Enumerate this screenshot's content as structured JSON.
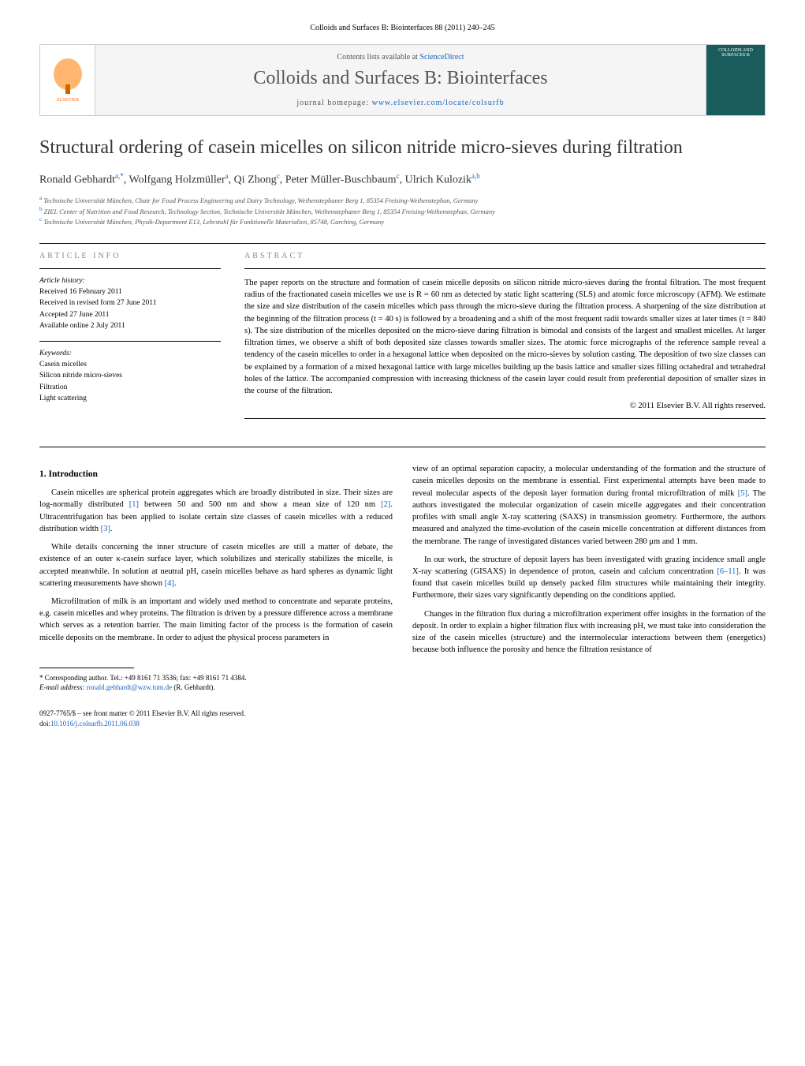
{
  "page_header": "Colloids and Surfaces B: Biointerfaces 88 (2011) 240–245",
  "masthead": {
    "contents_prefix": "Contents lists available at ",
    "contents_link": "ScienceDirect",
    "journal_name": "Colloids and Surfaces B: Biointerfaces",
    "homepage_prefix": "journal homepage: ",
    "homepage_url": "www.elsevier.com/locate/colsurfb",
    "cover_title": "COLLOIDS AND SURFACES B"
  },
  "title": "Structural ordering of casein micelles on silicon nitride micro-sieves during filtration",
  "authors_html": "Ronald Gebhardt|a,*|, Wolfgang Holzmüller|a|, Qi Zhong|c|, Peter Müller-Buschbaum|c|, Ulrich Kulozik|a,b|",
  "affiliations": {
    "a": "Technische Universität München, Chair for Food Process Engineering and Dairy Technology, Weihenstephaner Berg 1, 85354 Freising-Weihenstephan, Germany",
    "b": "ZIEL Center of Nutrition and Food Research, Technology Section, Technische Universität München, Weihenstephaner Berg 1, 85354 Freising-Weihenstephan, Germany",
    "c": "Technische Universität München, Physik-Department E13, Lehrstuhl für Funktionelle Materialien, 85748, Garching, Germany"
  },
  "article_info": {
    "heading": "ARTICLE INFO",
    "history_label": "Article history:",
    "received": "Received 16 February 2011",
    "revised": "Received in revised form 27 June 2011",
    "accepted": "Accepted 27 June 2011",
    "online": "Available online 2 July 2011",
    "keywords_label": "Keywords:",
    "keywords": [
      "Casein micelles",
      "Silicon nitride micro-sieves",
      "Filtration",
      "Light scattering"
    ]
  },
  "abstract": {
    "heading": "ABSTRACT",
    "text": "The paper reports on the structure and formation of casein micelle deposits on silicon nitride micro-sieves during the frontal filtration. The most frequent radius of the fractionated casein micelles we use is R = 60 nm as detected by static light scattering (SLS) and atomic force microscopy (AFM). We estimate the size and size distribution of the casein micelles which pass through the micro-sieve during the filtration process. A sharpening of the size distribution at the beginning of the filtration process (t = 40 s) is followed by a broadening and a shift of the most frequent radii towards smaller sizes at later times (t = 840 s). The size distribution of the micelles deposited on the micro-sieve during filtration is bimodal and consists of the largest and smallest micelles. At larger filtration times, we observe a shift of both deposited size classes towards smaller sizes. The atomic force micrographs of the reference sample reveal a tendency of the casein micelles to order in a hexagonal lattice when deposited on the micro-sieves by solution casting. The deposition of two size classes can be explained by a formation of a mixed hexagonal lattice with large micelles building up the basis lattice and smaller sizes filling octahedral and tetrahedral holes of the lattice. The accompanied compression with increasing thickness of the casein layer could result from preferential deposition of smaller sizes in the course of the filtration.",
    "copyright": "© 2011 Elsevier B.V. All rights reserved."
  },
  "body": {
    "section_heading": "1. Introduction",
    "col1_p1": "Casein micelles are spherical protein aggregates which are broadly distributed in size. Their sizes are log-normally distributed [1] between 50 and 500 nm and show a mean size of 120 nm [2]. Ultracentrifugation has been applied to isolate certain size classes of casein micelles with a reduced distribution width [3].",
    "col1_p2": "While details concerning the inner structure of casein micelles are still a matter of debate, the existence of an outer κ-casein surface layer, which solubilizes and sterically stabilizes the micelle, is accepted meanwhile. In solution at neutral pH, casein micelles behave as hard spheres as dynamic light scattering measurements have shown [4].",
    "col1_p3": "Microfiltration of milk is an important and widely used method to concentrate and separate proteins, e.g. casein micelles and whey proteins. The filtration is driven by a pressure difference across a membrane which serves as a retention barrier. The main limiting factor of the process is the formation of casein micelle deposits on the membrane. In order to adjust the physical process parameters in",
    "col2_p1": "view of an optimal separation capacity, a molecular understanding of the formation and the structure of casein micelles deposits on the membrane is essential. First experimental attempts have been made to reveal molecular aspects of the deposit layer formation during frontal microfiltration of milk [5]. The authors investigated the molecular organization of casein micelle aggregates and their concentration profiles with small angle X-ray scattering (SAXS) in transmission geometry. Furthermore, the authors measured and analyzed the time-evolution of the casein micelle concentration at different distances from the membrane. The range of investigated distances varied between 280 μm and 1 mm.",
    "col2_p2": "In our work, the structure of deposit layers has been investigated with grazing incidence small angle X-ray scattering (GISAXS) in dependence of proton, casein and calcium concentration [6–11]. It was found that casein micelles build up densely packed film structures while maintaining their integrity. Furthermore, their sizes vary significantly depending on the conditions applied.",
    "col2_p3": "Changes in the filtration flux during a microfiltration experiment offer insights in the formation of the deposit. In order to explain a higher filtration flux with increasing pH, we must take into consideration the size of the casein micelles (structure) and the intermolecular interactions between them (energetics) because both influence the porosity and hence the filtration resistance of"
  },
  "footnote": {
    "corresponding": "* Corresponding author. Tel.: +49 8161 71 3536; fax: +49 8161 71 4384.",
    "email_label": "E-mail address:",
    "email": "ronald.gebhardt@wzw.tum.de",
    "email_suffix": "(R. Gebhardt)."
  },
  "footer": {
    "issn": "0927-7765/$ – see front matter © 2011 Elsevier B.V. All rights reserved.",
    "doi_prefix": "doi:",
    "doi": "10.1016/j.colsurfb.2011.06.038"
  },
  "colors": {
    "link": "#1565c0",
    "text": "#000000",
    "muted": "#555555",
    "heading_gray": "#888888",
    "cover_bg": "#1a5b5b",
    "logo_orange": "#ff6600"
  }
}
